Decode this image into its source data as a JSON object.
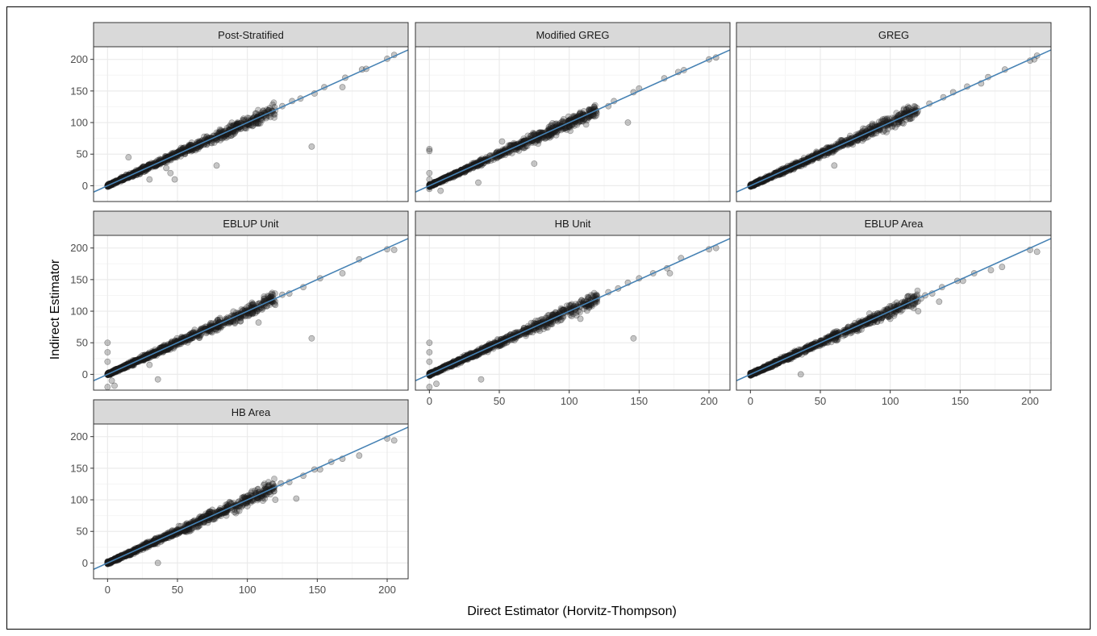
{
  "colors": {
    "panel_background": "#ffffff",
    "strip_fill": "#d9d9d9",
    "grid_major": "#ebebeb",
    "grid_minor": "#f5f5f5",
    "panel_border": "#333333",
    "point_fill": "#1a1a1a",
    "fit_line": "#4682b4"
  },
  "chart_data": {
    "type": "scatter",
    "xlabel": "Direct Estimator (Horvitz-Thompson)",
    "ylabel": "Indirect Estimator",
    "xlim": [
      -10,
      215
    ],
    "ylim": [
      -25,
      220
    ],
    "x_ticks": [
      0,
      50,
      100,
      150,
      200
    ],
    "y_ticks": [
      0,
      50,
      100,
      150,
      200
    ],
    "grid": true,
    "reference_line": {
      "intercept": 0,
      "slope": 1
    },
    "point_alpha": 0.25,
    "facets": [
      {
        "title": "Post-Stratified",
        "points": [
          [
            200,
            201
          ],
          [
            205,
            207
          ],
          [
            182,
            184
          ],
          [
            185,
            185
          ],
          [
            168,
            156
          ],
          [
            170,
            171
          ],
          [
            155,
            156
          ],
          [
            148,
            146
          ],
          [
            146,
            62
          ],
          [
            138,
            138
          ],
          [
            132,
            134
          ],
          [
            125,
            126
          ],
          [
            118,
            118
          ],
          [
            110,
            112
          ],
          [
            100,
            98
          ],
          [
            92,
            94
          ],
          [
            82,
            75
          ],
          [
            78,
            32
          ],
          [
            60,
            60
          ],
          [
            50,
            52
          ],
          [
            45,
            20
          ],
          [
            48,
            10
          ],
          [
            35,
            32
          ],
          [
            30,
            10
          ],
          [
            42,
            28
          ],
          [
            20,
            22
          ],
          [
            15,
            45
          ],
          [
            10,
            10
          ],
          [
            5,
            5
          ],
          [
            0,
            0
          ]
        ]
      },
      {
        "title": "Modified GREG",
        "points": [
          [
            200,
            200
          ],
          [
            205,
            203
          ],
          [
            182,
            183
          ],
          [
            178,
            180
          ],
          [
            168,
            170
          ],
          [
            150,
            154
          ],
          [
            146,
            148
          ],
          [
            142,
            100
          ],
          [
            132,
            134
          ],
          [
            128,
            126
          ],
          [
            118,
            122
          ],
          [
            108,
            110
          ],
          [
            100,
            102
          ],
          [
            90,
            92
          ],
          [
            80,
            84
          ],
          [
            75,
            35
          ],
          [
            60,
            62
          ],
          [
            50,
            50
          ],
          [
            52,
            70
          ],
          [
            42,
            42
          ],
          [
            35,
            5
          ],
          [
            30,
            32
          ],
          [
            20,
            22
          ],
          [
            10,
            12
          ],
          [
            0,
            58
          ],
          [
            0,
            55
          ],
          [
            0,
            20
          ],
          [
            0,
            10
          ],
          [
            0,
            -5
          ],
          [
            5,
            5
          ],
          [
            8,
            -8
          ]
        ]
      },
      {
        "title": "GREG",
        "points": [
          [
            200,
            198
          ],
          [
            203,
            200
          ],
          [
            205,
            206
          ],
          [
            182,
            184
          ],
          [
            170,
            172
          ],
          [
            165,
            162
          ],
          [
            155,
            157
          ],
          [
            145,
            148
          ],
          [
            138,
            140
          ],
          [
            128,
            130
          ],
          [
            118,
            118
          ],
          [
            110,
            112
          ],
          [
            100,
            100
          ],
          [
            92,
            95
          ],
          [
            82,
            84
          ],
          [
            78,
            75
          ],
          [
            68,
            70
          ],
          [
            60,
            32
          ],
          [
            52,
            54
          ],
          [
            42,
            44
          ],
          [
            32,
            34
          ],
          [
            22,
            24
          ],
          [
            12,
            12
          ],
          [
            5,
            5
          ],
          [
            0,
            0
          ]
        ]
      },
      {
        "title": "EBLUP Unit",
        "points": [
          [
            200,
            198
          ],
          [
            205,
            197
          ],
          [
            180,
            182
          ],
          [
            168,
            160
          ],
          [
            152,
            152
          ],
          [
            146,
            57
          ],
          [
            140,
            138
          ],
          [
            130,
            128
          ],
          [
            125,
            126
          ],
          [
            120,
            110
          ],
          [
            118,
            115
          ],
          [
            110,
            110
          ],
          [
            108,
            82
          ],
          [
            100,
            102
          ],
          [
            90,
            92
          ],
          [
            80,
            82
          ],
          [
            70,
            72
          ],
          [
            60,
            62
          ],
          [
            50,
            52
          ],
          [
            40,
            42
          ],
          [
            35,
            30
          ],
          [
            36,
            -8
          ],
          [
            30,
            15
          ],
          [
            25,
            30
          ],
          [
            20,
            22
          ],
          [
            10,
            10
          ],
          [
            0,
            50
          ],
          [
            0,
            35
          ],
          [
            0,
            20
          ],
          [
            0,
            -20
          ],
          [
            5,
            -18
          ],
          [
            3,
            -10
          ]
        ]
      },
      {
        "title": "HB Unit",
        "points": [
          [
            200,
            198
          ],
          [
            205,
            200
          ],
          [
            180,
            184
          ],
          [
            172,
            160
          ],
          [
            170,
            168
          ],
          [
            160,
            160
          ],
          [
            150,
            152
          ],
          [
            146,
            57
          ],
          [
            142,
            145
          ],
          [
            135,
            136
          ],
          [
            128,
            130
          ],
          [
            120,
            120
          ],
          [
            110,
            112
          ],
          [
            108,
            88
          ],
          [
            100,
            102
          ],
          [
            90,
            90
          ],
          [
            80,
            82
          ],
          [
            70,
            72
          ],
          [
            60,
            62
          ],
          [
            50,
            50
          ],
          [
            40,
            42
          ],
          [
            37,
            -8
          ],
          [
            30,
            30
          ],
          [
            20,
            22
          ],
          [
            10,
            12
          ],
          [
            0,
            50
          ],
          [
            0,
            35
          ],
          [
            0,
            20
          ],
          [
            0,
            -20
          ],
          [
            5,
            -15
          ]
        ]
      },
      {
        "title": "EBLUP Area",
        "points": [
          [
            200,
            197
          ],
          [
            205,
            194
          ],
          [
            180,
            170
          ],
          [
            172,
            165
          ],
          [
            160,
            160
          ],
          [
            152,
            148
          ],
          [
            148,
            148
          ],
          [
            137,
            138
          ],
          [
            135,
            115
          ],
          [
            130,
            128
          ],
          [
            125,
            125
          ],
          [
            122,
            120
          ],
          [
            120,
            100
          ],
          [
            110,
            108
          ],
          [
            100,
            88
          ],
          [
            92,
            90
          ],
          [
            85,
            85
          ],
          [
            78,
            78
          ],
          [
            70,
            70
          ],
          [
            60,
            60
          ],
          [
            50,
            48
          ],
          [
            42,
            40
          ],
          [
            36,
            0
          ],
          [
            30,
            28
          ],
          [
            20,
            20
          ],
          [
            10,
            10
          ],
          [
            5,
            5
          ],
          [
            0,
            0
          ]
        ]
      },
      {
        "title": "HB Area",
        "points": [
          [
            200,
            197
          ],
          [
            205,
            194
          ],
          [
            180,
            170
          ],
          [
            168,
            165
          ],
          [
            160,
            160
          ],
          [
            152,
            148
          ],
          [
            148,
            148
          ],
          [
            140,
            138
          ],
          [
            135,
            102
          ],
          [
            130,
            128
          ],
          [
            124,
            126
          ],
          [
            120,
            100
          ],
          [
            118,
            118
          ],
          [
            110,
            110
          ],
          [
            100,
            90
          ],
          [
            92,
            90
          ],
          [
            85,
            84
          ],
          [
            78,
            78
          ],
          [
            70,
            70
          ],
          [
            60,
            60
          ],
          [
            50,
            48
          ],
          [
            42,
            40
          ],
          [
            36,
            0
          ],
          [
            30,
            28
          ],
          [
            20,
            20
          ],
          [
            10,
            10
          ],
          [
            5,
            5
          ],
          [
            0,
            0
          ]
        ]
      }
    ]
  }
}
